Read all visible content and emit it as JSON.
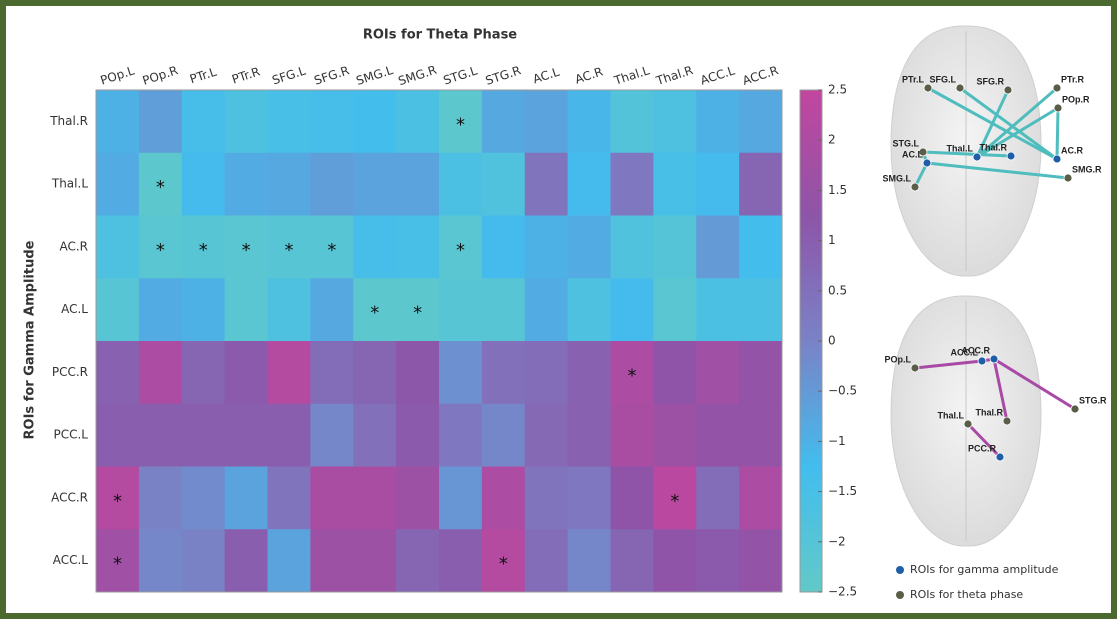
{
  "chart_data": {
    "type": "heatmap",
    "title": "ROIs for Theta Phase",
    "ylabel": "ROIs for Gamma Amplitude",
    "x_categories": [
      "POp.L",
      "POp.R",
      "PTr.L",
      "PTr.R",
      "SFG.L",
      "SFG.R",
      "SMG.L",
      "SMG.R",
      "STG.L",
      "STG.R",
      "AC.L",
      "AC.R",
      "Thal.L",
      "Thal.R",
      "ACC.L",
      "ACC.R"
    ],
    "y_categories": [
      "Thal.R",
      "Thal.L",
      "AC.R",
      "AC.L",
      "PCC.R",
      "PCC.L",
      "ACC.R",
      "ACC.L"
    ],
    "values": [
      [
        -1.0,
        -0.6,
        -1.4,
        -1.7,
        -1.5,
        -1.4,
        -1.3,
        -1.6,
        -2.3,
        -0.8,
        -0.7,
        -1.1,
        -1.9,
        -1.7,
        -1.0,
        -0.8
      ],
      [
        -0.9,
        -2.3,
        -1.2,
        -0.9,
        -0.8,
        -0.6,
        -0.7,
        -0.7,
        -1.6,
        -1.8,
        0.4,
        -1.2,
        0.3,
        -1.5,
        -1.2,
        0.8
      ],
      [
        -1.7,
        -2.2,
        -2.1,
        -2.2,
        -2.1,
        -2.1,
        -1.4,
        -1.5,
        -2.2,
        -1.2,
        -1.0,
        -0.9,
        -1.8,
        -2.0,
        -0.5,
        -1.3
      ],
      [
        -2.1,
        -0.9,
        -1.0,
        -2.2,
        -1.7,
        -0.8,
        -2.3,
        -2.3,
        -2.1,
        -2.1,
        -0.9,
        -1.7,
        -1.2,
        -2.2,
        -1.6,
        -1.6
      ],
      [
        0.9,
        2.0,
        0.8,
        1.1,
        2.2,
        0.6,
        0.8,
        1.2,
        -0.3,
        0.5,
        0.6,
        0.9,
        2.0,
        1.3,
        1.7,
        1.4
      ],
      [
        1.0,
        1.0,
        1.0,
        1.0,
        1.0,
        -0.1,
        0.5,
        1.1,
        0.3,
        -0.1,
        0.7,
        0.9,
        1.9,
        1.6,
        1.4,
        1.4
      ],
      [
        2.2,
        0.0,
        -0.2,
        -0.7,
        0.4,
        1.9,
        1.9,
        1.6,
        -0.4,
        2.0,
        0.4,
        0.3,
        1.3,
        2.3,
        0.6,
        2.0
      ],
      [
        1.7,
        -0.1,
        0.0,
        1.0,
        -0.7,
        1.6,
        1.6,
        0.8,
        1.0,
        2.2,
        0.6,
        -0.1,
        0.8,
        1.3,
        1.1,
        1.4
      ]
    ],
    "annotations": [
      [
        null,
        null,
        null,
        null,
        null,
        null,
        null,
        null,
        "*",
        null,
        null,
        null,
        null,
        null,
        null,
        null
      ],
      [
        null,
        "*",
        null,
        null,
        null,
        null,
        null,
        null,
        null,
        null,
        null,
        null,
        null,
        null,
        null,
        null
      ],
      [
        null,
        "*",
        "*",
        "*",
        "*",
        "*",
        null,
        null,
        "*",
        null,
        null,
        null,
        null,
        null,
        null,
        null
      ],
      [
        null,
        null,
        null,
        null,
        null,
        null,
        "*",
        "*",
        null,
        null,
        null,
        null,
        null,
        null,
        null,
        null
      ],
      [
        null,
        null,
        null,
        null,
        null,
        null,
        null,
        null,
        null,
        null,
        null,
        null,
        "*",
        null,
        null,
        null
      ],
      [
        null,
        null,
        null,
        null,
        null,
        null,
        null,
        null,
        null,
        null,
        null,
        null,
        null,
        null,
        null,
        null
      ],
      [
        "*",
        null,
        null,
        null,
        null,
        null,
        null,
        null,
        null,
        null,
        null,
        null,
        null,
        "*",
        null,
        null
      ],
      [
        "*",
        null,
        null,
        null,
        null,
        null,
        null,
        null,
        null,
        "*",
        null,
        null,
        null,
        null,
        null,
        null
      ]
    ],
    "zlim": [
      -2.5,
      2.5
    ],
    "zticks": [
      {
        "value": -2.5,
        "label": "−2.5"
      },
      {
        "value": -2,
        "label": "−2"
      },
      {
        "value": -1.5,
        "label": "−1.5"
      },
      {
        "value": -1,
        "label": "−1"
      },
      {
        "value": -0.5,
        "label": "−0.5"
      },
      0,
      0.5,
      1,
      1.5,
      2,
      2.5
    ],
    "colormap": [
      "#62c9c8",
      "#42bdee",
      "#7a82c6",
      "#8d55a8",
      "#c2469f"
    ]
  },
  "brain_diagrams": [
    {
      "edge_color": "#4fbdbd",
      "nodes": [
        {
          "label": "PTr.L",
          "kind": "theta"
        },
        {
          "label": "SFG.L",
          "kind": "theta"
        },
        {
          "label": "SFG.R",
          "kind": "theta"
        },
        {
          "label": "PTr.R",
          "kind": "theta"
        },
        {
          "label": "POp.R",
          "kind": "theta"
        },
        {
          "label": "STG.L",
          "kind": "theta"
        },
        {
          "label": "AC.L",
          "kind": "gamma"
        },
        {
          "label": "Thal.L",
          "kind": "gamma"
        },
        {
          "label": "Thal.R",
          "kind": "gamma"
        },
        {
          "label": "AC.R",
          "kind": "gamma"
        },
        {
          "label": "SMG.L",
          "kind": "theta"
        },
        {
          "label": "SMG.R",
          "kind": "theta"
        }
      ]
    },
    {
      "edge_color": "#a84aa6",
      "nodes": [
        {
          "label": "POp.L",
          "kind": "theta"
        },
        {
          "label": "ACC.L",
          "kind": "gamma"
        },
        {
          "label": "ACC.R",
          "kind": "gamma"
        },
        {
          "label": "Thal.L",
          "kind": "theta"
        },
        {
          "label": "Thal.R",
          "kind": "theta"
        },
        {
          "label": "STG.R",
          "kind": "theta"
        },
        {
          "label": "PCC.R",
          "kind": "gamma"
        }
      ]
    }
  ],
  "legend": [
    {
      "label": "ROIs for gamma amplitude",
      "color": "#1f5fa8"
    },
    {
      "label": "ROIs for theta phase",
      "color": "#5a5e48"
    }
  ]
}
